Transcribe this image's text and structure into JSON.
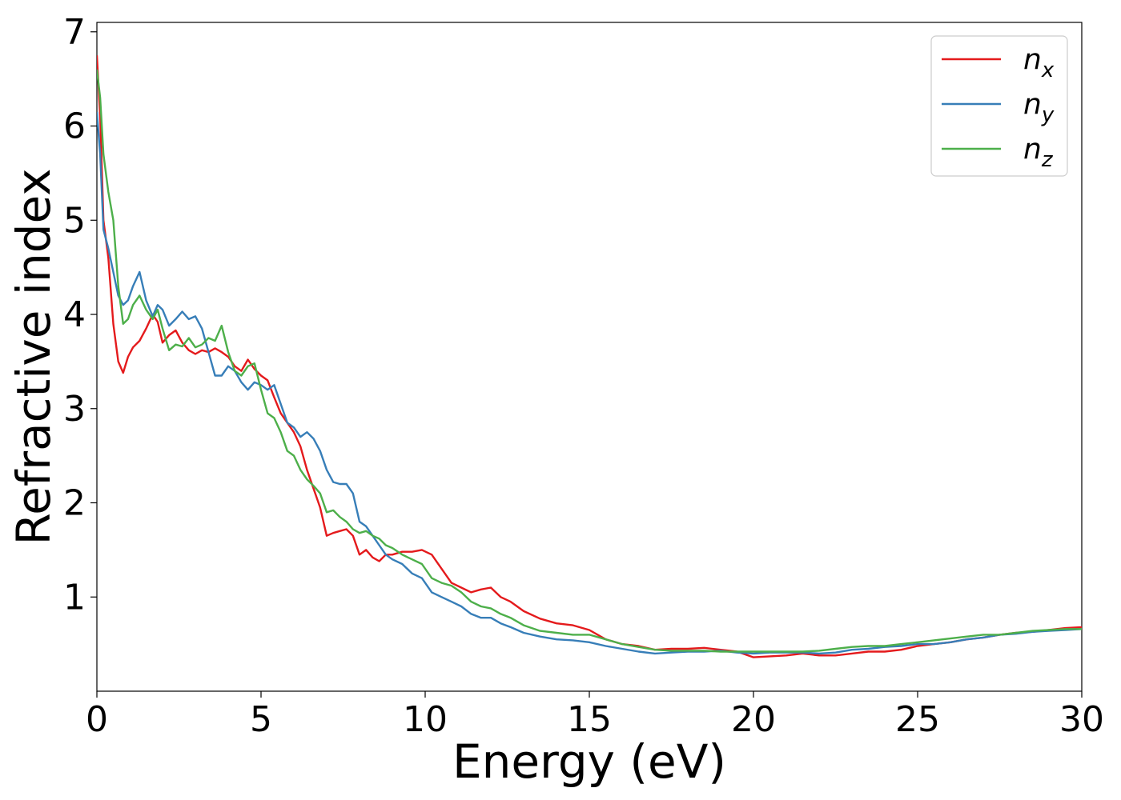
{
  "chart_data": {
    "type": "line",
    "title": "",
    "xlabel": "Energy (eV)",
    "ylabel": "Refractive index",
    "xlim": [
      0,
      30
    ],
    "ylim": [
      0.0,
      7.1
    ],
    "xticks": [
      0,
      5,
      10,
      15,
      20,
      25,
      30
    ],
    "yticks": [
      1,
      2,
      3,
      4,
      5,
      6,
      7
    ],
    "grid": false,
    "legend_position": "top-right",
    "series": [
      {
        "name": "n_x",
        "label_base": "n",
        "label_sub": "x",
        "color": "#e41a1c",
        "x": [
          0,
          0.1,
          0.2,
          0.35,
          0.5,
          0.65,
          0.8,
          0.95,
          1.1,
          1.3,
          1.5,
          1.7,
          1.85,
          2.0,
          2.2,
          2.4,
          2.6,
          2.8,
          3.0,
          3.2,
          3.4,
          3.6,
          3.8,
          4.0,
          4.2,
          4.4,
          4.6,
          4.8,
          5.0,
          5.2,
          5.4,
          5.6,
          5.8,
          6.0,
          6.2,
          6.4,
          6.6,
          6.8,
          7.0,
          7.2,
          7.4,
          7.6,
          7.8,
          8.0,
          8.2,
          8.4,
          8.6,
          8.8,
          9.0,
          9.3,
          9.6,
          9.9,
          10.2,
          10.5,
          10.8,
          11.1,
          11.4,
          11.7,
          12.0,
          12.3,
          12.6,
          13.0,
          13.5,
          14.0,
          14.5,
          15.0,
          15.5,
          16.0,
          16.5,
          17.0,
          17.5,
          18.0,
          18.5,
          19.0,
          19.5,
          20.0,
          20.5,
          21.0,
          21.5,
          22.0,
          22.5,
          23.0,
          23.5,
          24.0,
          24.5,
          25.0,
          25.5,
          26.0,
          26.5,
          27.0,
          27.5,
          28.0,
          28.5,
          29.0,
          29.5,
          30.0
        ],
        "y": [
          6.75,
          6.1,
          5.0,
          4.6,
          3.9,
          3.5,
          3.38,
          3.55,
          3.65,
          3.72,
          3.85,
          4.0,
          3.92,
          3.7,
          3.78,
          3.83,
          3.7,
          3.62,
          3.58,
          3.62,
          3.6,
          3.64,
          3.6,
          3.55,
          3.45,
          3.4,
          3.52,
          3.42,
          3.35,
          3.3,
          3.12,
          2.95,
          2.85,
          2.75,
          2.6,
          2.35,
          2.15,
          1.95,
          1.65,
          1.68,
          1.7,
          1.72,
          1.65,
          1.45,
          1.5,
          1.42,
          1.38,
          1.45,
          1.45,
          1.48,
          1.48,
          1.5,
          1.45,
          1.3,
          1.15,
          1.1,
          1.05,
          1.08,
          1.1,
          1.0,
          0.95,
          0.85,
          0.77,
          0.72,
          0.7,
          0.65,
          0.55,
          0.5,
          0.48,
          0.44,
          0.45,
          0.45,
          0.46,
          0.44,
          0.42,
          0.36,
          0.37,
          0.38,
          0.4,
          0.38,
          0.38,
          0.4,
          0.42,
          0.42,
          0.44,
          0.48,
          0.5,
          0.52,
          0.55,
          0.57,
          0.6,
          0.62,
          0.63,
          0.65,
          0.67,
          0.68
        ]
      },
      {
        "name": "n_y",
        "label_base": "n",
        "label_sub": "y",
        "color": "#377eb8",
        "x": [
          0,
          0.1,
          0.2,
          0.35,
          0.5,
          0.65,
          0.8,
          0.95,
          1.1,
          1.3,
          1.5,
          1.7,
          1.85,
          2.0,
          2.2,
          2.4,
          2.6,
          2.8,
          3.0,
          3.2,
          3.4,
          3.6,
          3.8,
          4.0,
          4.2,
          4.4,
          4.6,
          4.8,
          5.0,
          5.2,
          5.4,
          5.6,
          5.8,
          6.0,
          6.2,
          6.4,
          6.6,
          6.8,
          7.0,
          7.2,
          7.4,
          7.6,
          7.8,
          8.0,
          8.2,
          8.4,
          8.6,
          8.8,
          9.0,
          9.3,
          9.6,
          9.9,
          10.2,
          10.5,
          10.8,
          11.1,
          11.4,
          11.7,
          12.0,
          12.3,
          12.6,
          13.0,
          13.5,
          14.0,
          14.5,
          15.0,
          15.5,
          16.0,
          16.5,
          17.0,
          17.5,
          18.0,
          18.5,
          19.0,
          19.5,
          20.0,
          20.5,
          21.0,
          21.5,
          22.0,
          22.5,
          23.0,
          23.5,
          24.0,
          24.5,
          25.0,
          25.5,
          26.0,
          26.5,
          27.0,
          27.5,
          28.0,
          28.5,
          29.0,
          29.5,
          30.0
        ],
        "y": [
          6.15,
          5.7,
          4.9,
          4.7,
          4.45,
          4.2,
          4.1,
          4.15,
          4.3,
          4.45,
          4.15,
          3.98,
          4.1,
          4.05,
          3.88,
          3.95,
          4.03,
          3.95,
          3.98,
          3.85,
          3.6,
          3.35,
          3.35,
          3.45,
          3.4,
          3.28,
          3.2,
          3.28,
          3.25,
          3.2,
          3.25,
          3.05,
          2.85,
          2.8,
          2.7,
          2.75,
          2.68,
          2.55,
          2.35,
          2.22,
          2.2,
          2.2,
          2.1,
          1.8,
          1.75,
          1.65,
          1.55,
          1.45,
          1.4,
          1.35,
          1.25,
          1.2,
          1.05,
          1.0,
          0.95,
          0.9,
          0.82,
          0.78,
          0.78,
          0.72,
          0.68,
          0.62,
          0.58,
          0.55,
          0.54,
          0.52,
          0.48,
          0.45,
          0.42,
          0.4,
          0.41,
          0.42,
          0.42,
          0.43,
          0.41,
          0.4,
          0.41,
          0.41,
          0.41,
          0.4,
          0.41,
          0.44,
          0.45,
          0.47,
          0.48,
          0.5,
          0.5,
          0.52,
          0.55,
          0.57,
          0.6,
          0.61,
          0.63,
          0.64,
          0.65,
          0.66
        ]
      },
      {
        "name": "n_z",
        "label_base": "n",
        "label_sub": "z",
        "color": "#4daf4a",
        "x": [
          0,
          0.1,
          0.2,
          0.35,
          0.5,
          0.65,
          0.8,
          0.95,
          1.1,
          1.3,
          1.5,
          1.7,
          1.85,
          2.0,
          2.2,
          2.4,
          2.6,
          2.8,
          3.0,
          3.2,
          3.4,
          3.6,
          3.8,
          4.0,
          4.2,
          4.4,
          4.6,
          4.8,
          5.0,
          5.2,
          5.4,
          5.6,
          5.8,
          6.0,
          6.2,
          6.4,
          6.6,
          6.8,
          7.0,
          7.2,
          7.4,
          7.6,
          7.8,
          8.0,
          8.2,
          8.4,
          8.6,
          8.8,
          9.0,
          9.3,
          9.6,
          9.9,
          10.2,
          10.5,
          10.8,
          11.1,
          11.4,
          11.7,
          12.0,
          12.3,
          12.6,
          13.0,
          13.5,
          14.0,
          14.5,
          15.0,
          15.5,
          16.0,
          16.5,
          17.0,
          17.5,
          18.0,
          18.5,
          19.0,
          19.5,
          20.0,
          20.5,
          21.0,
          21.5,
          22.0,
          22.5,
          23.0,
          23.5,
          24.0,
          24.5,
          25.0,
          25.5,
          26.0,
          26.5,
          27.0,
          27.5,
          28.0,
          28.5,
          29.0,
          29.5,
          30.0
        ],
        "y": [
          6.6,
          6.3,
          5.7,
          5.3,
          5.0,
          4.3,
          3.9,
          3.95,
          4.1,
          4.2,
          4.05,
          3.95,
          4.05,
          3.85,
          3.62,
          3.68,
          3.66,
          3.75,
          3.65,
          3.68,
          3.75,
          3.72,
          3.88,
          3.6,
          3.4,
          3.35,
          3.45,
          3.48,
          3.2,
          2.95,
          2.9,
          2.75,
          2.55,
          2.5,
          2.35,
          2.25,
          2.18,
          2.1,
          1.9,
          1.92,
          1.85,
          1.8,
          1.72,
          1.68,
          1.7,
          1.65,
          1.62,
          1.55,
          1.52,
          1.45,
          1.4,
          1.35,
          1.2,
          1.15,
          1.12,
          1.05,
          0.95,
          0.9,
          0.88,
          0.82,
          0.78,
          0.7,
          0.64,
          0.62,
          0.6,
          0.6,
          0.55,
          0.5,
          0.47,
          0.44,
          0.43,
          0.43,
          0.43,
          0.42,
          0.42,
          0.42,
          0.42,
          0.42,
          0.42,
          0.43,
          0.45,
          0.47,
          0.48,
          0.48,
          0.5,
          0.52,
          0.54,
          0.56,
          0.58,
          0.6,
          0.6,
          0.62,
          0.64,
          0.65,
          0.66,
          0.66
        ]
      }
    ]
  }
}
